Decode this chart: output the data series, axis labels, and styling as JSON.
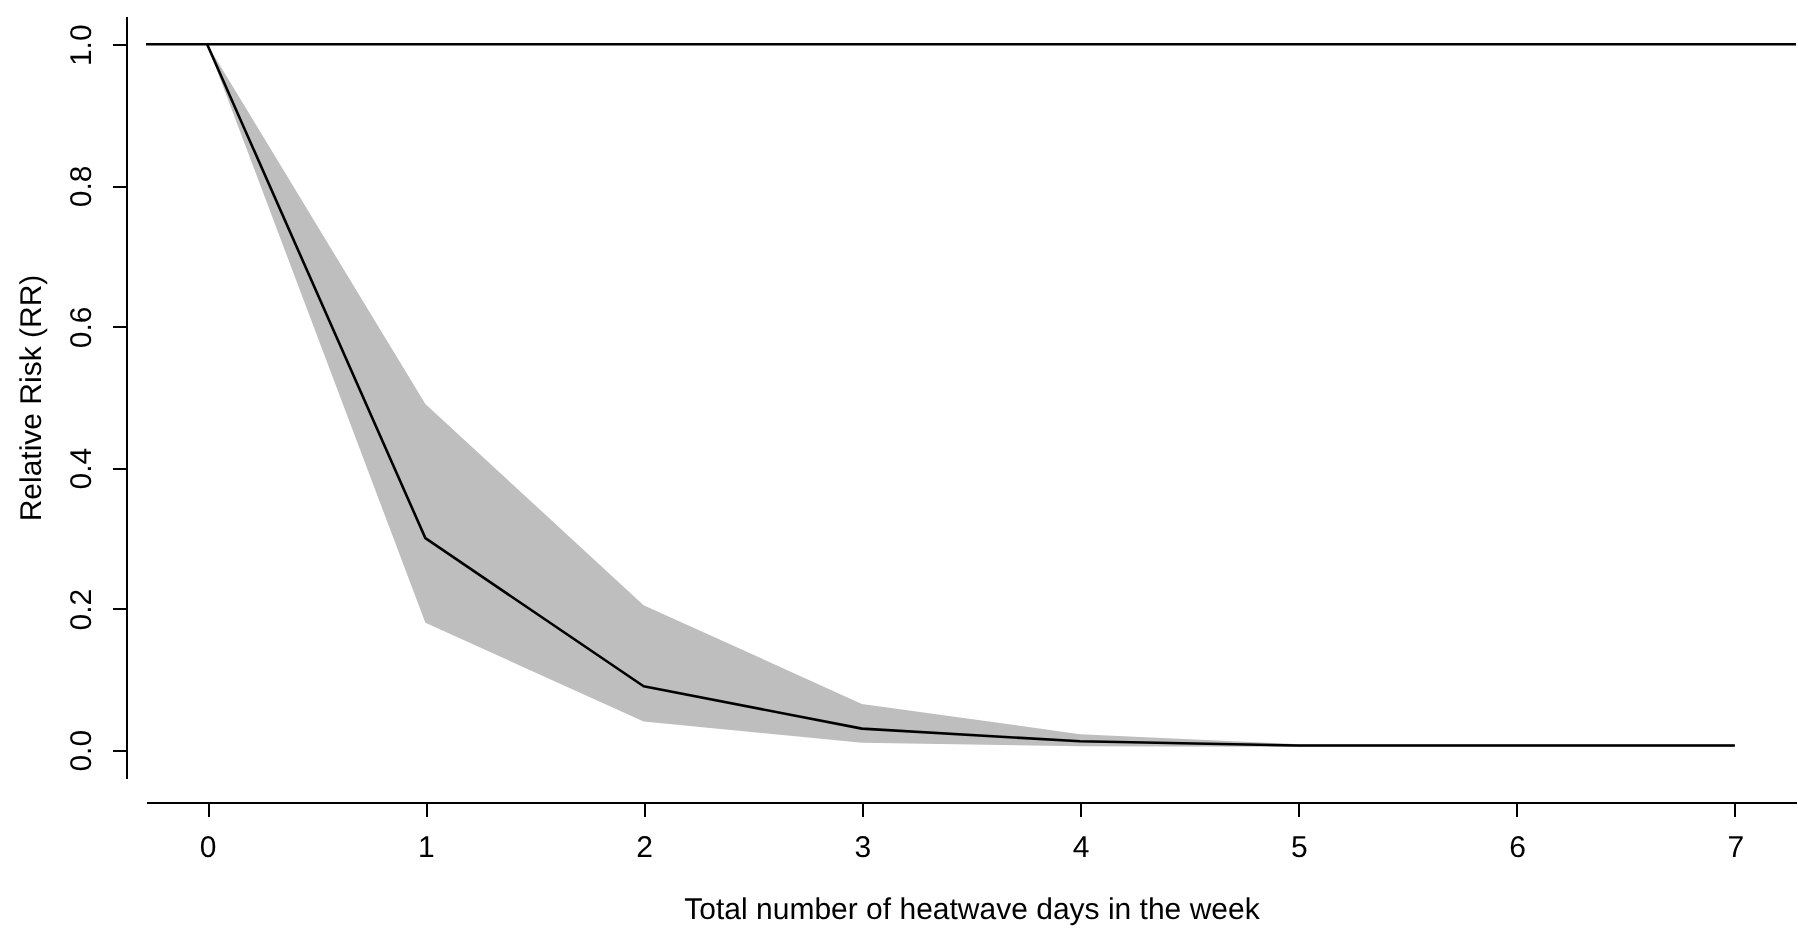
{
  "chart_data": {
    "type": "line",
    "xlabel": "Total number of heatwave days in the week",
    "ylabel": "Relative Risk (RR)",
    "x": [
      0,
      1,
      2,
      3,
      4,
      5,
      6,
      7
    ],
    "series": [
      {
        "color": "#000000",
        "values": [
          1.0,
          0.3,
          0.09,
          0.03,
          0.012,
          0.006,
          0.006,
          0.006
        ],
        "lower": [
          1.0,
          0.18,
          0.04,
          0.01,
          0.005,
          0.004,
          0.004,
          0.004
        ],
        "upper": [
          1.0,
          0.49,
          0.205,
          0.065,
          0.022,
          0.008,
          0.008,
          0.008
        ]
      }
    ],
    "xlim": [
      -0.28,
      7.28
    ],
    "ylim": [
      -0.04,
      1.04
    ],
    "xticks": [
      0,
      1,
      2,
      3,
      4,
      5,
      6,
      7
    ],
    "yticks": [
      {
        "value": 0,
        "label": "0.0"
      },
      {
        "value": 0.2,
        "label": "0.2"
      },
      {
        "value": 0.4,
        "label": "0.4"
      },
      {
        "value": 0.6,
        "label": "0.6"
      },
      {
        "value": 0.8,
        "label": "0.8"
      },
      {
        "value": 1,
        "label": "1.0"
      }
    ],
    "ref_lines": [
      {
        "axis": "y",
        "value": 1,
        "color": "#000000"
      }
    ],
    "grid": false
  }
}
